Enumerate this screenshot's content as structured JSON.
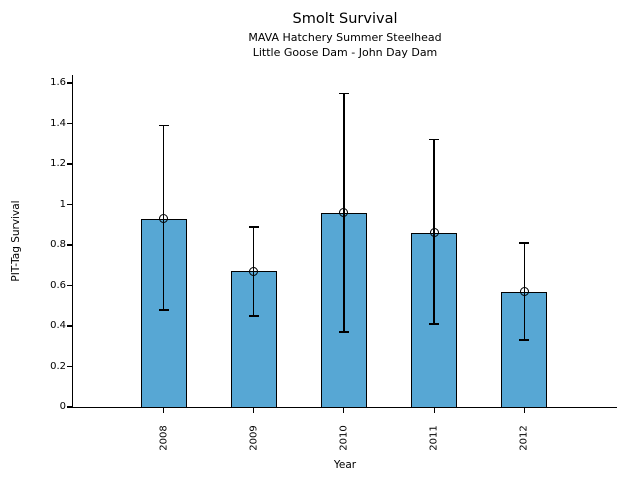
{
  "figure": {
    "title": "Smolt Survival",
    "subtitle_line1": "MAVA Hatchery Summer Steelhead",
    "subtitle_line2": "Little Goose Dam - John Day Dam"
  },
  "chart_data": {
    "type": "bar",
    "title": "Smolt Survival",
    "subtitle": [
      "MAVA Hatchery Summer Steelhead",
      "Little Goose Dam - John Day Dam"
    ],
    "xlabel": "Year",
    "ylabel": "PIT-Tag Survival",
    "categories": [
      "2008",
      "2009",
      "2010",
      "2011",
      "2012"
    ],
    "values": [
      0.93,
      0.67,
      0.96,
      0.86,
      0.57
    ],
    "error_bars": {
      "upper": [
        1.39,
        0.89,
        1.55,
        1.32,
        0.81
      ],
      "lower": [
        0.48,
        0.45,
        0.37,
        0.41,
        0.33
      ]
    },
    "ylim": [
      0,
      1.64
    ],
    "yticks": [
      0,
      0.2,
      0.4,
      0.6,
      0.8,
      1,
      1.2,
      1.4,
      1.6
    ],
    "ytick_labels": [
      "0",
      "0.2",
      "0.4",
      "0.6",
      "0.8",
      "1",
      "1.2",
      "1.4",
      "1.6"
    ],
    "xtick_rotation_deg": 90,
    "grid": false,
    "legend_position": "none",
    "bar_color": "#57a7d4",
    "bar_edge_color": "#000000",
    "error_bar_color": "#000000",
    "marker": "open-circle"
  }
}
